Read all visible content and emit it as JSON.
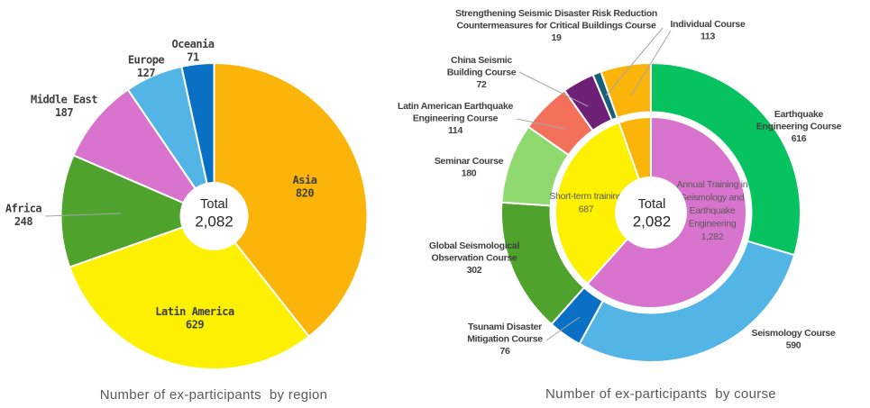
{
  "chart_data": [
    {
      "id": "by-region",
      "type": "pie",
      "title": "Number of ex-participants  by region",
      "center_label": "Total",
      "center_value": "2,082",
      "total": 2082,
      "legend_position": "none",
      "slices": [
        {
          "key": "asia",
          "label_lines": [
            "Asia"
          ],
          "value": 820,
          "display": "820",
          "color": "#FBB40A",
          "label_placement": "inside"
        },
        {
          "key": "latin-america",
          "label_lines": [
            "Latin America"
          ],
          "value": 629,
          "display": "629",
          "color": "#FDF000",
          "label_placement": "inside"
        },
        {
          "key": "africa",
          "label_lines": [
            "Africa"
          ],
          "value": 248,
          "display": "248",
          "color": "#4FA32D",
          "label_placement": "outside"
        },
        {
          "key": "middle-east",
          "label_lines": [
            "Middle East"
          ],
          "value": 187,
          "display": "187",
          "color": "#D974CE",
          "label_placement": "outside"
        },
        {
          "key": "europe",
          "label_lines": [
            "Europe"
          ],
          "value": 127,
          "display": "127",
          "color": "#53B4E6",
          "label_placement": "outside"
        },
        {
          "key": "oceania",
          "label_lines": [
            "Oceania"
          ],
          "value": 71,
          "display": "71",
          "color": "#0A70C4",
          "label_placement": "outside"
        }
      ]
    },
    {
      "id": "by-course",
      "type": "sunburst",
      "title": "Number of ex-participants  by course",
      "center_label": "Total",
      "center_value": "2,082",
      "total": 2082,
      "legend_position": "none",
      "inner_slices": [
        {
          "key": "annual-training",
          "label_lines": [
            "Annual Training in",
            "Seismology and",
            "Earthquake",
            "Engineering"
          ],
          "value": 1282,
          "display": "1,282",
          "color": "#D974CE"
        },
        {
          "key": "short-term-training",
          "label_lines": [
            "Short-term training"
          ],
          "value": 687,
          "display": "687",
          "color": "#FDF000"
        },
        {
          "key": "individual-training",
          "label_lines": [],
          "value": 113,
          "display": "",
          "color": "#FBB40A"
        }
      ],
      "outer_slices": [
        {
          "key": "earthquake-engineering",
          "label_lines": [
            "Earthquake",
            "Engineering Course"
          ],
          "value": 616,
          "display": "616",
          "color": "#07C35F"
        },
        {
          "key": "seismology",
          "label_lines": [
            "Seismology Course"
          ],
          "value": 590,
          "display": "590",
          "color": "#53B4E6"
        },
        {
          "key": "tsunami",
          "label_lines": [
            "Tsunami Disaster",
            "Mitigation Course"
          ],
          "value": 76,
          "display": "76",
          "color": "#0A70C4"
        },
        {
          "key": "global-seismological",
          "label_lines": [
            "Global Seismological",
            "Observation Course"
          ],
          "value": 302,
          "display": "302",
          "color": "#4FA32D"
        },
        {
          "key": "seminar",
          "label_lines": [
            "Seminar Course"
          ],
          "value": 180,
          "display": "180",
          "color": "#90D96F"
        },
        {
          "key": "latin-american-eq",
          "label_lines": [
            "Latin American Earthquake",
            "Engineering Course"
          ],
          "value": 114,
          "display": "114",
          "color": "#F3705B"
        },
        {
          "key": "china-seismic",
          "label_lines": [
            "China Seismic",
            "Building Course"
          ],
          "value": 72,
          "display": "72",
          "color": "#6E2077"
        },
        {
          "key": "strengthening",
          "label_lines": [
            "Strengthening Seismic Disaster Risk Reduction",
            "Countermeasures for Critical Buildings Course"
          ],
          "value": 19,
          "display": "19",
          "color": "#17607A"
        },
        {
          "key": "individual",
          "label_lines": [
            "Individual Course"
          ],
          "value": 113,
          "display": "113",
          "color": "#FBB40A"
        }
      ]
    }
  ]
}
